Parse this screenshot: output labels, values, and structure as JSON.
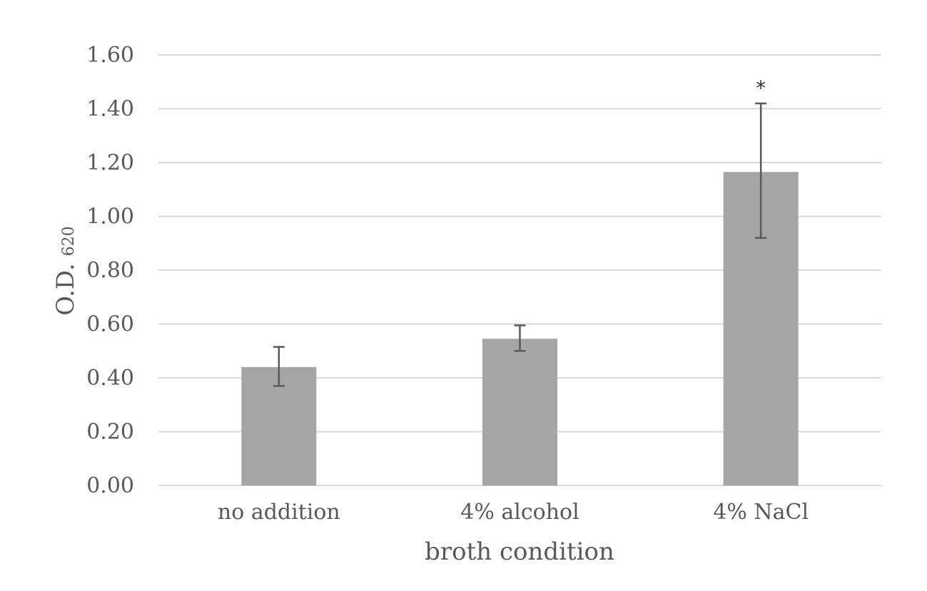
{
  "chart_data": {
    "type": "bar",
    "categories": [
      "no addition",
      "4% alcohol",
      "4% NaCl"
    ],
    "values": [
      0.44,
      0.545,
      1.165
    ],
    "error_bars": [
      {
        "low": 0.37,
        "high": 0.515
      },
      {
        "low": 0.5,
        "high": 0.595
      },
      {
        "low": 0.92,
        "high": 1.42
      }
    ],
    "annotations": [
      "",
      "",
      "*"
    ],
    "xlabel": "broth condition",
    "ylabel": "O.D.",
    "ylabel_subscript": "620",
    "ylim": [
      0,
      1.6
    ],
    "yticks": [
      "0.00",
      "0.20",
      "0.40",
      "0.60",
      "0.80",
      "1.00",
      "1.20",
      "1.40",
      "1.60"
    ],
    "grid": true,
    "legend": "none",
    "colors": {
      "bar": "#a5a5a5",
      "grid": "#d9d9d9",
      "error_bar": "#595959",
      "text": "#595959"
    }
  }
}
